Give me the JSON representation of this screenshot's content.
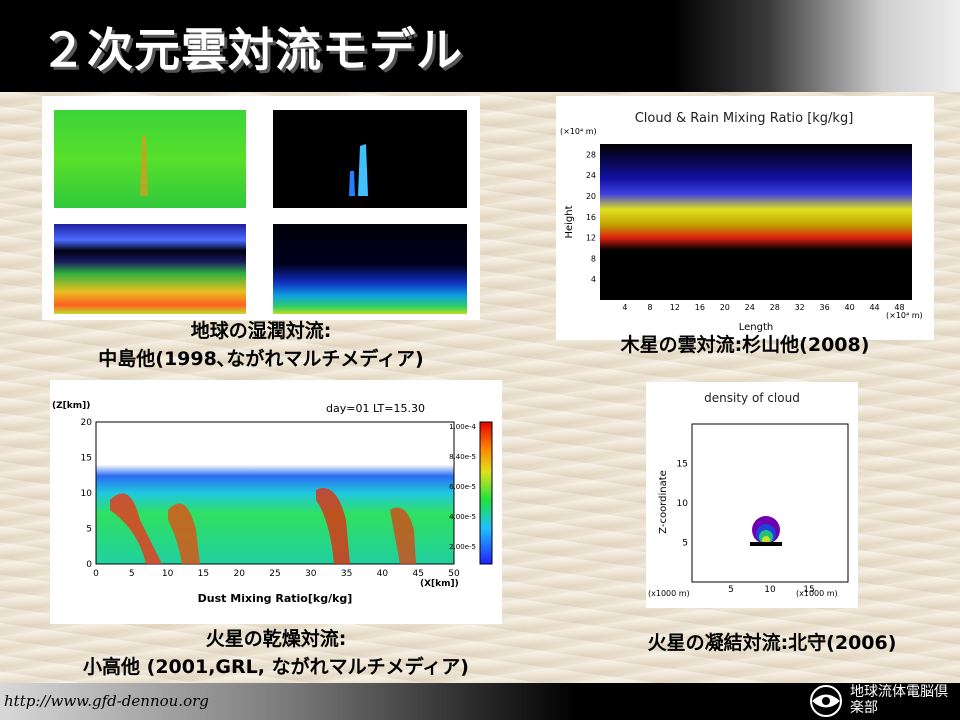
{
  "slide": {
    "title": "２次元雲対流モデル",
    "footer_url": "http://www.gfd-dennou.org",
    "logo_text": "地球流体電脳倶楽部"
  },
  "panels": {
    "earth": {
      "caption_line1": "地球の湿潤対流:",
      "caption_line2": "中島他(1998､ながれマルチメディア)"
    },
    "jupiter": {
      "caption": "木星の雲対流:杉山他(2008)",
      "plot_title": "Cloud & Rain Mixing Ratio [kg/kg]",
      "y_unit": "(×10⁴ m)",
      "x_unit": "(×10⁴ m)",
      "ylabel": "Height",
      "xlabel": "Length",
      "yticks": [
        "4",
        "8",
        "12",
        "16",
        "20",
        "24",
        "28"
      ],
      "xticks": [
        "4",
        "8",
        "12",
        "16",
        "20",
        "24",
        "28",
        "32",
        "36",
        "40",
        "44",
        "48"
      ]
    },
    "mars_dust": {
      "caption_line1": "火星の乾燥対流:",
      "caption_line2": "小高他 (2001,GRL, ながれマルチメディア)",
      "ylabel": "(Z[km])",
      "xlabel": "Dust Mixing Ratio[kg/kg]",
      "x_unit": "(X[km])",
      "time_label": "day=01 LT=15.30",
      "yticks": [
        "0",
        "5",
        "10",
        "15",
        "20"
      ],
      "xticks": [
        "0",
        "5",
        "10",
        "15",
        "20",
        "25",
        "30",
        "35",
        "40",
        "45",
        "50"
      ],
      "colorbar_labels": [
        "1.00e-4",
        "8.40e-5",
        "6.00e-5",
        "4.00e-5",
        "2.00e-5"
      ]
    },
    "mars_cloud": {
      "caption": "火星の凝結対流:北守(2006)",
      "plot_title": "density of cloud",
      "ylabel": "Z-coordinate",
      "y_unit": "(x1000 m)",
      "x_unit": "(x1000 m)",
      "yticks": [
        "5",
        "10",
        "15"
      ],
      "xticks": [
        "5",
        "10",
        "15"
      ]
    }
  }
}
